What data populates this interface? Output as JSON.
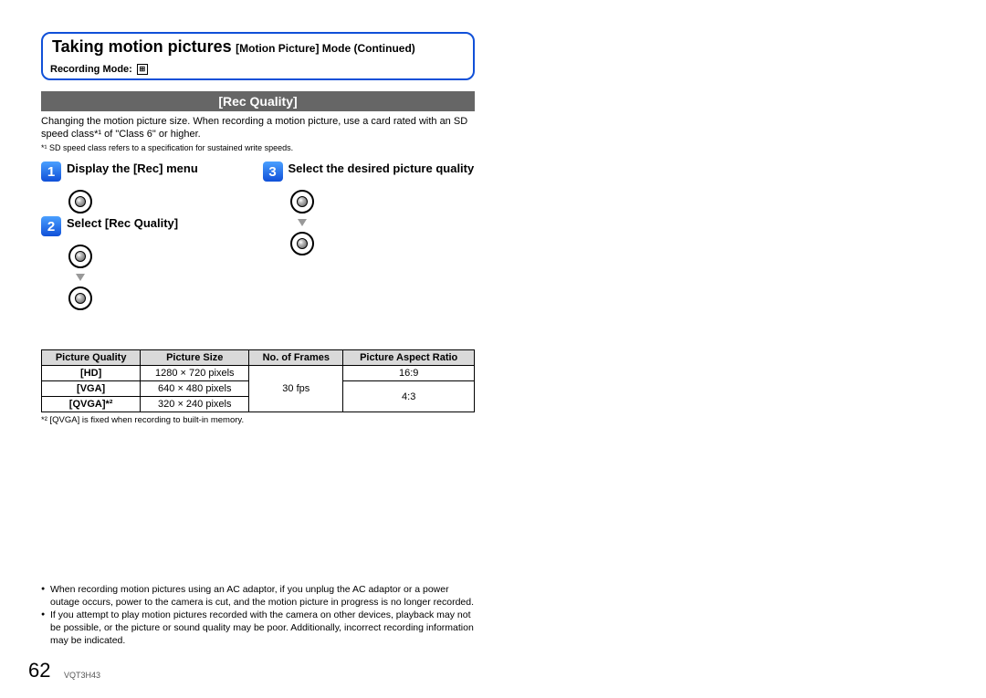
{
  "header": {
    "title_main": "Taking motion pictures",
    "title_sub": "[Motion Picture] Mode (Continued)",
    "recording_mode_label": "Recording Mode:",
    "mode_icon_glyph": "⊞"
  },
  "section": {
    "bar_label": "[Rec Quality]",
    "intro": "Changing the motion picture size. When recording a motion picture, use a card rated with an SD speed class*¹ of \"Class 6\" or higher.",
    "footnote1": "*¹ SD speed class refers to a specification for sustained write speeds."
  },
  "steps": [
    {
      "num": "1",
      "title": "Display the [Rec] menu",
      "icons": [
        "dot"
      ]
    },
    {
      "num": "2",
      "title": "Select [Rec Quality]",
      "icons": [
        "dot",
        "arrow",
        "dot"
      ]
    },
    {
      "num": "3",
      "title": "Select the desired picture quality",
      "icons": [
        "dot",
        "arrow",
        "dot"
      ]
    }
  ],
  "table": {
    "headers": [
      "Picture Quality",
      "Picture Size",
      "No. of Frames",
      "Picture Aspect Ratio"
    ],
    "rows": [
      {
        "quality": "[HD]",
        "size": "1280 × 720 pixels",
        "frames": "",
        "ratio": "16:9",
        "frames_rowspan": 3,
        "ratio_rowspan": 1
      },
      {
        "quality": "[VGA]",
        "size": "640 × 480 pixels",
        "frames": "30 fps",
        "ratio": "4:3"
      },
      {
        "quality": "[QVGA]*²",
        "size": "320 × 240 pixels",
        "frames": "",
        "ratio": ""
      }
    ],
    "frames_value": "30 fps",
    "ratio_hd": "16:9",
    "ratio_vga": "4:3"
  },
  "footnote2": "*² [QVGA] is fixed when recording to built-in memory.",
  "notes": [
    "When recording motion pictures using an AC adaptor, if you unplug the AC adaptor or a power outage occurs, power to the camera is cut, and the motion picture in progress is no longer recorded.",
    "If you attempt to play motion pictures recorded with the camera on other devices, playback may not be possible, or the picture or sound quality may be poor. Additionally, incorrect recording information may be indicated."
  ],
  "page_number": "62",
  "doc_id": "VQT3H43"
}
